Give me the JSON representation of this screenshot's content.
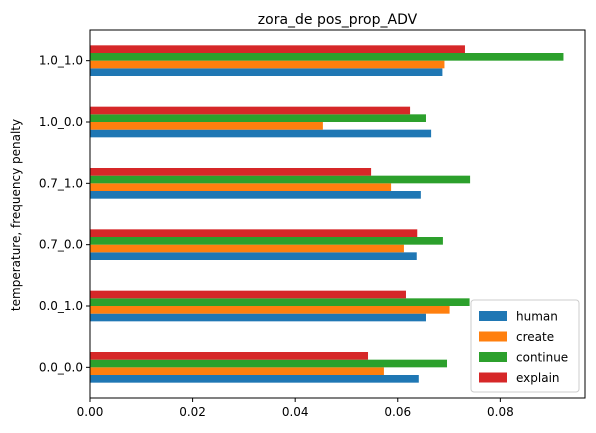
{
  "chart_data": {
    "type": "bar",
    "orientation": "horizontal",
    "title": "zora_de pos_prop_ADV",
    "xlabel": "",
    "ylabel": "temperature, frequency penalty",
    "categories": [
      "0.0_0.0",
      "0.0_1.0",
      "0.7_0.0",
      "0.7_1.0",
      "1.0_0.0",
      "1.0_1.0"
    ],
    "xlim": [
      0,
      0.0965
    ],
    "xticks": [
      0.0,
      0.02,
      0.04,
      0.06,
      0.08
    ],
    "xtick_labels": [
      "0.00",
      "0.02",
      "0.04",
      "0.06",
      "0.08"
    ],
    "grid": false,
    "legend_position": "lower right",
    "series": [
      {
        "name": "human",
        "color": "#1f77b4",
        "values": [
          0.0641,
          0.0655,
          0.0637,
          0.0645,
          0.0665,
          0.0687
        ]
      },
      {
        "name": "create",
        "color": "#ff7f0e",
        "values": [
          0.0573,
          0.0701,
          0.0612,
          0.0587,
          0.0454,
          0.0691
        ]
      },
      {
        "name": "continue",
        "color": "#2ca02c",
        "values": [
          0.0696,
          0.074,
          0.0688,
          0.0741,
          0.0655,
          0.0923
        ]
      },
      {
        "name": "explain",
        "color": "#d62728",
        "values": [
          0.0542,
          0.0616,
          0.0638,
          0.0548,
          0.0624,
          0.0731
        ]
      }
    ]
  }
}
